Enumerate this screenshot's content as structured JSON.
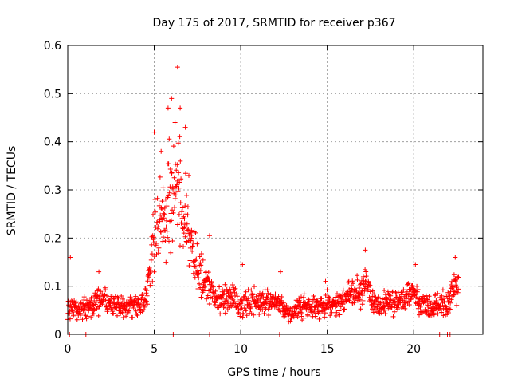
{
  "chart_data": {
    "type": "scatter",
    "title": "Day 175 of 2017, SRMTID for receiver p367",
    "xlabel": "GPS time / hours",
    "ylabel": "SRMTID / TECUs",
    "xlim": [
      0,
      24
    ],
    "ylim": [
      0,
      0.6
    ],
    "xticks": [
      0,
      5,
      10,
      15,
      20
    ],
    "yticks": [
      0,
      0.1,
      0.2,
      0.3,
      0.4,
      0.5,
      0.6
    ],
    "xtick_labels": [
      "0",
      "5",
      "10",
      "15",
      "20"
    ],
    "ytick_labels": [
      "0",
      "0.1",
      "0.2",
      "0.3",
      "0.4",
      "0.5",
      "0.6"
    ],
    "grid": true,
    "marker": "+",
    "series_color": "#ff0000",
    "series": [
      {
        "name": "SRMTID",
        "note": "dense point cloud; values summarized as a smoothed envelope (hour, typical value) plus notable peaks",
        "trend": [
          [
            0.0,
            0.06
          ],
          [
            0.5,
            0.05
          ],
          [
            1.0,
            0.055
          ],
          [
            1.5,
            0.065
          ],
          [
            2.0,
            0.07
          ],
          [
            2.5,
            0.065
          ],
          [
            3.0,
            0.06
          ],
          [
            3.5,
            0.055
          ],
          [
            4.0,
            0.06
          ],
          [
            4.5,
            0.07
          ],
          [
            4.8,
            0.15
          ],
          [
            5.0,
            0.22
          ],
          [
            5.3,
            0.24
          ],
          [
            5.6,
            0.25
          ],
          [
            5.9,
            0.28
          ],
          [
            6.2,
            0.3
          ],
          [
            6.5,
            0.29
          ],
          [
            6.8,
            0.24
          ],
          [
            7.1,
            0.18
          ],
          [
            7.4,
            0.14
          ],
          [
            7.7,
            0.12
          ],
          [
            8.0,
            0.11
          ],
          [
            8.3,
            0.09
          ],
          [
            8.7,
            0.07
          ],
          [
            9.0,
            0.07
          ],
          [
            9.5,
            0.08
          ],
          [
            10.0,
            0.06
          ],
          [
            10.5,
            0.07
          ],
          [
            11.0,
            0.065
          ],
          [
            11.5,
            0.07
          ],
          [
            12.0,
            0.07
          ],
          [
            12.5,
            0.05
          ],
          [
            13.0,
            0.045
          ],
          [
            13.5,
            0.06
          ],
          [
            14.0,
            0.055
          ],
          [
            14.5,
            0.06
          ],
          [
            15.0,
            0.065
          ],
          [
            15.5,
            0.065
          ],
          [
            16.0,
            0.075
          ],
          [
            16.5,
            0.085
          ],
          [
            17.0,
            0.09
          ],
          [
            17.3,
            0.1
          ],
          [
            17.6,
            0.07
          ],
          [
            18.0,
            0.06
          ],
          [
            18.5,
            0.065
          ],
          [
            19.0,
            0.07
          ],
          [
            19.5,
            0.075
          ],
          [
            20.0,
            0.085
          ],
          [
            20.5,
            0.06
          ],
          [
            21.0,
            0.055
          ],
          [
            21.5,
            0.06
          ],
          [
            22.0,
            0.065
          ],
          [
            22.3,
            0.1
          ],
          [
            22.6,
            0.09
          ]
        ],
        "peaks": [
          [
            0.15,
            0.16
          ],
          [
            1.8,
            0.13
          ],
          [
            5.0,
            0.42
          ],
          [
            5.4,
            0.38
          ],
          [
            5.8,
            0.47
          ],
          [
            6.0,
            0.49
          ],
          [
            6.2,
            0.44
          ],
          [
            6.35,
            0.555
          ],
          [
            6.5,
            0.47
          ],
          [
            6.8,
            0.43
          ],
          [
            7.0,
            0.33
          ],
          [
            8.2,
            0.205
          ],
          [
            10.1,
            0.145
          ],
          [
            12.3,
            0.13
          ],
          [
            14.9,
            0.11
          ],
          [
            17.2,
            0.175
          ],
          [
            20.1,
            0.145
          ],
          [
            22.4,
            0.16
          ]
        ],
        "zero_values_at_hours": [
          0.1,
          1.05,
          6.1,
          8.2,
          12.25,
          21.5,
          21.95,
          22.1
        ]
      }
    ]
  }
}
